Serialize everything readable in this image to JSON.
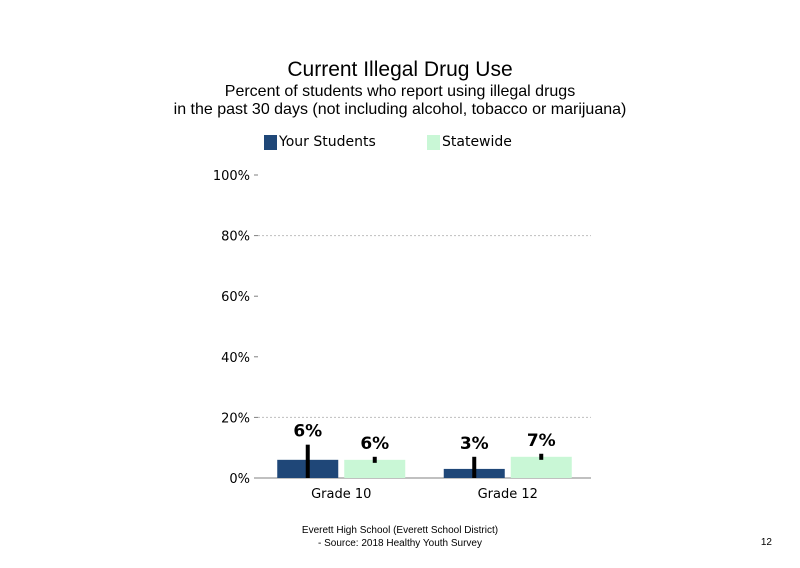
{
  "header": {
    "title": "Current Illegal Drug Use",
    "subtitle_line1": "Percent of students who report using illegal drugs",
    "subtitle_line2": "in the past 30 days (not including alcohol, tobacco or marijuana)"
  },
  "legend": {
    "your_students": "Your Students",
    "statewide": "Statewide"
  },
  "colors": {
    "your_students": "#1f4778",
    "statewide": "#c9f7d6",
    "error_bar": "#000000",
    "gridline": "#bfbfbf"
  },
  "chart_data": {
    "type": "bar",
    "categories": [
      "Grade 10",
      "Grade 12"
    ],
    "series": [
      {
        "name": "Your Students",
        "values": [
          6,
          3
        ],
        "labels": [
          "6%",
          "3%"
        ],
        "ci": [
          [
            0,
            11
          ],
          [
            0,
            7
          ]
        ]
      },
      {
        "name": "Statewide",
        "values": [
          6,
          7
        ],
        "labels": [
          "6%",
          "7%"
        ],
        "ci": [
          [
            5,
            7
          ],
          [
            6,
            8
          ]
        ]
      }
    ],
    "yticks": [
      "100%",
      "80%",
      "60%",
      "40%",
      "20%",
      "0%"
    ],
    "ytick_values": [
      100,
      80,
      60,
      40,
      20,
      0
    ],
    "ylim": [
      0,
      100
    ],
    "gridlines": [
      20,
      80
    ],
    "legend_position": "top"
  },
  "footer": {
    "line1": "Everett High School (Everett School District)",
    "line2": "- Source: 2018 Healthy Youth Survey",
    "page_number": "12"
  }
}
